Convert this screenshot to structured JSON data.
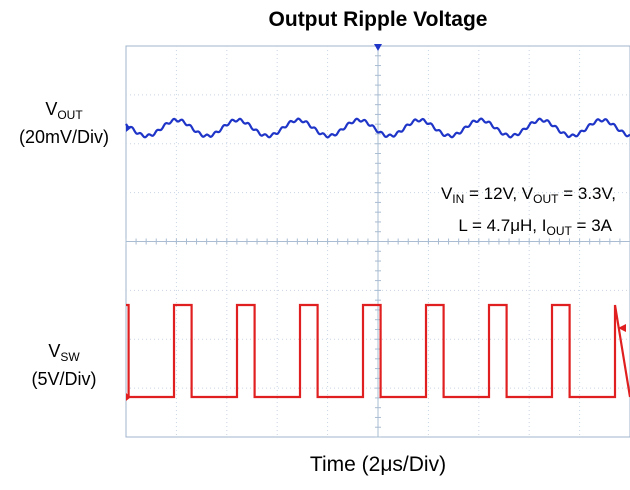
{
  "chart_data": {
    "type": "line",
    "title": "Output Ripple Voltage",
    "xlabel": "Time (2μs/Div)",
    "channels": [
      {
        "label_main": "V",
        "label_sub": "OUT",
        "scale": "(20mV/Div)",
        "color": "#1f35c8",
        "waveform": "sine",
        "cycles_shown": 8.3
      },
      {
        "label_main": "V",
        "label_sub": "SW",
        "scale": "(5V/Div)",
        "color": "#e02020",
        "waveform": "square",
        "period_us": 2.5,
        "duty_cycle": 0.28,
        "high_V": 12,
        "low_V": 0
      }
    ],
    "annotation": {
      "vin_label": "V",
      "vin_sub": "IN",
      "vin_value": " = 12V, ",
      "vout_label": "V",
      "vout_sub": "OUT",
      "vout_value": " = 3.3V,",
      "l_text": "L = 4.7μH, ",
      "iout_label": "I",
      "iout_sub": "OUT",
      "iout_value": " = 3A"
    },
    "grid": true,
    "x_divisions": 10,
    "y_divisions": 8
  }
}
